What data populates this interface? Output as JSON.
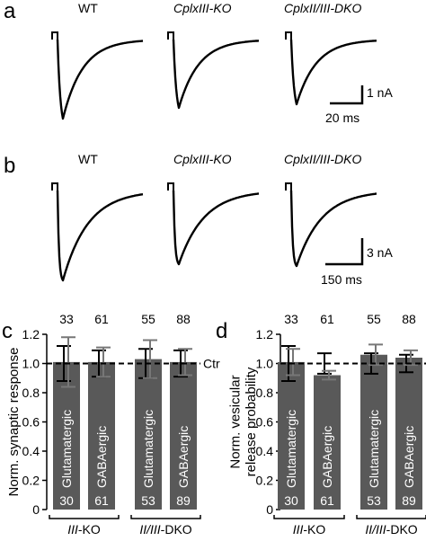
{
  "panels": {
    "a": {
      "label": "a",
      "genotypes": [
        "WT",
        "CplxIII-KO",
        "CplxII/III-DKO"
      ]
    },
    "b": {
      "label": "b",
      "genotypes": [
        "WT",
        "CplxIII-KO",
        "CplxII/III-DKO"
      ]
    },
    "c": {
      "label": "c"
    },
    "d": {
      "label": "d"
    }
  },
  "scalebars": {
    "a": {
      "amplitude": "1 nA",
      "time": "20 ms"
    },
    "b": {
      "amplitude": "3 nA",
      "time": "150 ms"
    }
  },
  "chart_data": [
    {
      "type": "bar",
      "panel": "c",
      "ylabel": "Norm. synaptic response",
      "ylim": [
        0,
        1.2
      ],
      "yticks": [
        "0",
        "0.2",
        "0.4",
        "0.6",
        "0.8",
        "1.0",
        "1.2"
      ],
      "reference": {
        "value": 1.0,
        "label": "Ctr"
      },
      "categories": [
        "Glutamatergic",
        "GABAergic",
        "Glutamatergic",
        "GABAergic"
      ],
      "groups": [
        "III-KO",
        "II/III-DKO"
      ],
      "values": [
        1.01,
        1.01,
        1.03,
        1.01
      ],
      "errors": [
        0.17,
        0.1,
        0.13,
        0.09
      ],
      "control_errors": [
        0.12,
        0.09,
        0.1,
        0.09
      ],
      "n_top": [
        "33",
        "61",
        "55",
        "88"
      ],
      "n_bottom": [
        "30",
        "61",
        "53",
        "89"
      ],
      "color": "#595959"
    },
    {
      "type": "bar",
      "panel": "d",
      "ylabel": "Norm. vesicular release probability",
      "ylim": [
        0,
        1.2
      ],
      "yticks": [
        "0",
        "0.2",
        "0.4",
        "0.6",
        "0.8",
        "1.0",
        "1.2"
      ],
      "reference": {
        "value": 1.0,
        "label": "Ctr"
      },
      "categories": [
        "Glutamatergic",
        "GABAergic",
        "Glutamatergic",
        "GABAergic"
      ],
      "groups": [
        "III-KO",
        "II/III-DKO"
      ],
      "values": [
        1.01,
        0.92,
        1.06,
        1.04
      ],
      "errors": [
        0.09,
        0.03,
        0.07,
        0.05
      ],
      "control_errors": [
        0.12,
        0.07,
        0.07,
        0.06
      ],
      "n_top": [
        "33",
        "61",
        "55",
        "88"
      ],
      "n_bottom": [
        "30",
        "61",
        "53",
        "89"
      ],
      "color": "#595959"
    }
  ]
}
